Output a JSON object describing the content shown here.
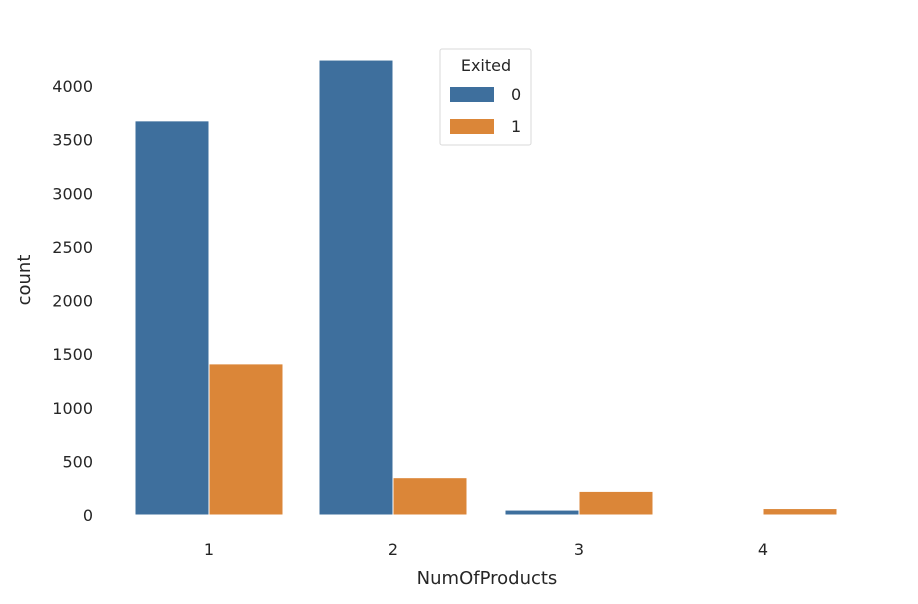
{
  "chart_data": {
    "type": "bar",
    "title": "",
    "xlabel": "NumOfProducts",
    "ylabel": "count",
    "categories": [
      "1",
      "2",
      "3",
      "4"
    ],
    "ylim": [
      0,
      4400
    ],
    "yticks": [
      0,
      500,
      1000,
      1500,
      2000,
      2500,
      3000,
      3500,
      4000
    ],
    "grid": false,
    "legend": {
      "title": "Exited",
      "placement": "upper-center"
    },
    "series": [
      {
        "name": "0",
        "color": "#3e6f9d",
        "values": [
          3675,
          4242,
          46,
          0
        ]
      },
      {
        "name": "1",
        "color": "#db8638",
        "values": [
          1409,
          348,
          220,
          60
        ]
      }
    ]
  }
}
